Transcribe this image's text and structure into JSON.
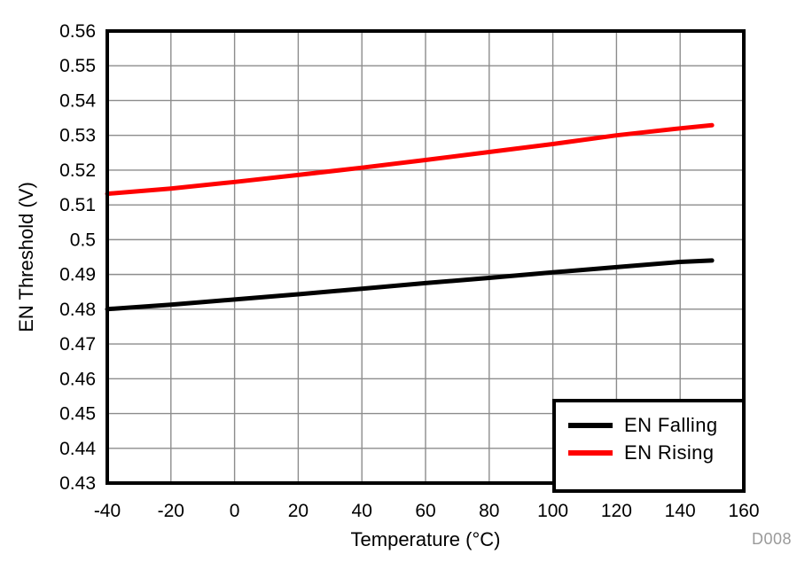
{
  "figure": {
    "watermark": "D008"
  },
  "colors": {
    "background": "#ffffff",
    "axis": "#000000",
    "grid": "#8c8c8c",
    "watermark": "#9a9a9a",
    "en_falling": "#000000",
    "en_rising": "#ff0000"
  },
  "chart_data": {
    "type": "line",
    "title": "",
    "xlabel": "Temperature (°C)",
    "ylabel": "EN Threshold (V)",
    "xlim": [
      -40,
      160
    ],
    "ylim": [
      0.43,
      0.56
    ],
    "grid": true,
    "legend_position": "bottom-right",
    "x_ticks": [
      -40,
      -20,
      0,
      20,
      40,
      60,
      80,
      100,
      120,
      140,
      160
    ],
    "x_tick_labels": [
      "-40",
      "-20",
      "0",
      "20",
      "40",
      "60",
      "80",
      "100",
      "120",
      "140",
      "160"
    ],
    "y_ticks": [
      0.43,
      0.44,
      0.45,
      0.46,
      0.47,
      0.48,
      0.49,
      0.5,
      0.51,
      0.52,
      0.53,
      0.54,
      0.55,
      0.56
    ],
    "y_tick_labels": [
      "0.43",
      "0.44",
      "0.45",
      "0.46",
      "0.47",
      "0.48",
      "0.49",
      "0.5",
      "0.51",
      "0.52",
      "0.53",
      "0.54",
      "0.55",
      "0.56"
    ],
    "series": [
      {
        "name": "EN Falling",
        "color": "#000000",
        "x": [
          -40,
          -20,
          0,
          20,
          40,
          60,
          80,
          100,
          120,
          140,
          150
        ],
        "y": [
          0.48,
          0.4813,
          0.4828,
          0.4843,
          0.4859,
          0.4875,
          0.489,
          0.4906,
          0.4921,
          0.4936,
          0.494
        ]
      },
      {
        "name": "EN Rising",
        "color": "#ff0000",
        "x": [
          -40,
          -20,
          0,
          20,
          40,
          60,
          80,
          100,
          120,
          140,
          150
        ],
        "y": [
          0.5132,
          0.5147,
          0.5166,
          0.5186,
          0.5207,
          0.5229,
          0.5252,
          0.5275,
          0.53,
          0.532,
          0.5329
        ]
      }
    ]
  }
}
